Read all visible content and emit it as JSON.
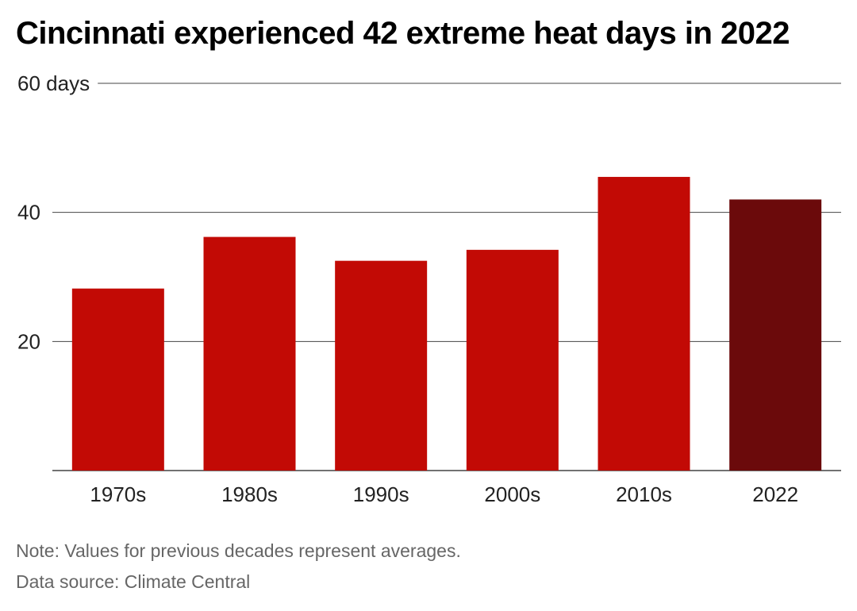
{
  "title": "Cincinnati experienced 42 extreme heat days in 2022",
  "note": "Note: Values for previous decades represent averages.",
  "source": "Data source: Climate Central",
  "colors": {
    "bar": "#c20a05",
    "highlight": "#6b0a0b",
    "grid": "#444444",
    "axis_text": "#222222",
    "footer_text": "#666666"
  },
  "chart_data": {
    "type": "bar",
    "title": "Cincinnati experienced 42 extreme heat days in 2022",
    "categories": [
      "1970s",
      "1980s",
      "1990s",
      "2000s",
      "2010s",
      "2022"
    ],
    "values": [
      28.2,
      36.2,
      32.5,
      34.2,
      45.5,
      42
    ],
    "highlight_category": "2022",
    "ylim": [
      0,
      60
    ],
    "yticks": [
      0,
      20,
      40,
      60
    ],
    "ytick_labels": [
      "",
      "20",
      "40",
      "60 days"
    ],
    "xlabel": "",
    "ylabel": "",
    "grid": true,
    "legend": "none"
  }
}
